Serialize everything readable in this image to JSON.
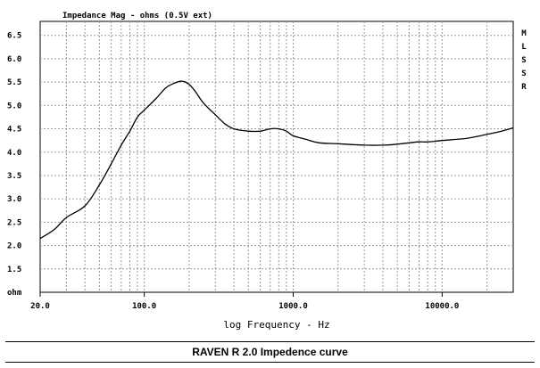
{
  "chart_data": {
    "type": "line",
    "title": "Impedance Mag - ohms (0.5V ext)",
    "xlabel": "log Frequency - Hz",
    "ylabel": "",
    "x_scale": "log",
    "xlim": [
      20,
      30000
    ],
    "ylim": [
      1.0,
      6.8
    ],
    "y_ticks": [
      "6.5",
      "6.0",
      "5.5",
      "5.0",
      "4.5",
      "4.0",
      "3.5",
      "3.0",
      "2.5",
      "2.0",
      "1.5"
    ],
    "y_bottom_label": "ohm",
    "x_ticks": [
      "20.0",
      "100.0",
      "1000.0",
      "10000.0"
    ],
    "legend_letters": [
      "M",
      "L",
      "S",
      "S",
      "R"
    ],
    "grid": true,
    "line_color": "#000000",
    "series": [
      {
        "x": [
          20,
          25,
          30,
          40,
          50,
          60,
          70,
          80,
          90,
          100,
          120,
          140,
          160,
          180,
          200,
          220,
          250,
          300,
          350,
          400,
          500,
          600,
          700,
          800,
          900,
          1000,
          1200,
          1500,
          2000,
          3000,
          4000,
          5000,
          6000,
          7000,
          8000,
          10000,
          12000,
          15000,
          20000,
          25000,
          30000
        ],
        "y": [
          2.15,
          2.35,
          2.6,
          2.85,
          3.3,
          3.75,
          4.15,
          4.45,
          4.75,
          4.9,
          5.15,
          5.38,
          5.48,
          5.52,
          5.45,
          5.3,
          5.05,
          4.8,
          4.6,
          4.5,
          4.45,
          4.45,
          4.5,
          4.5,
          4.45,
          4.35,
          4.28,
          4.2,
          4.18,
          4.15,
          4.15,
          4.17,
          4.2,
          4.22,
          4.22,
          4.25,
          4.27,
          4.3,
          4.38,
          4.45,
          4.52
        ]
      }
    ]
  },
  "caption": "RAVEN R 2.0 Impedence curve"
}
